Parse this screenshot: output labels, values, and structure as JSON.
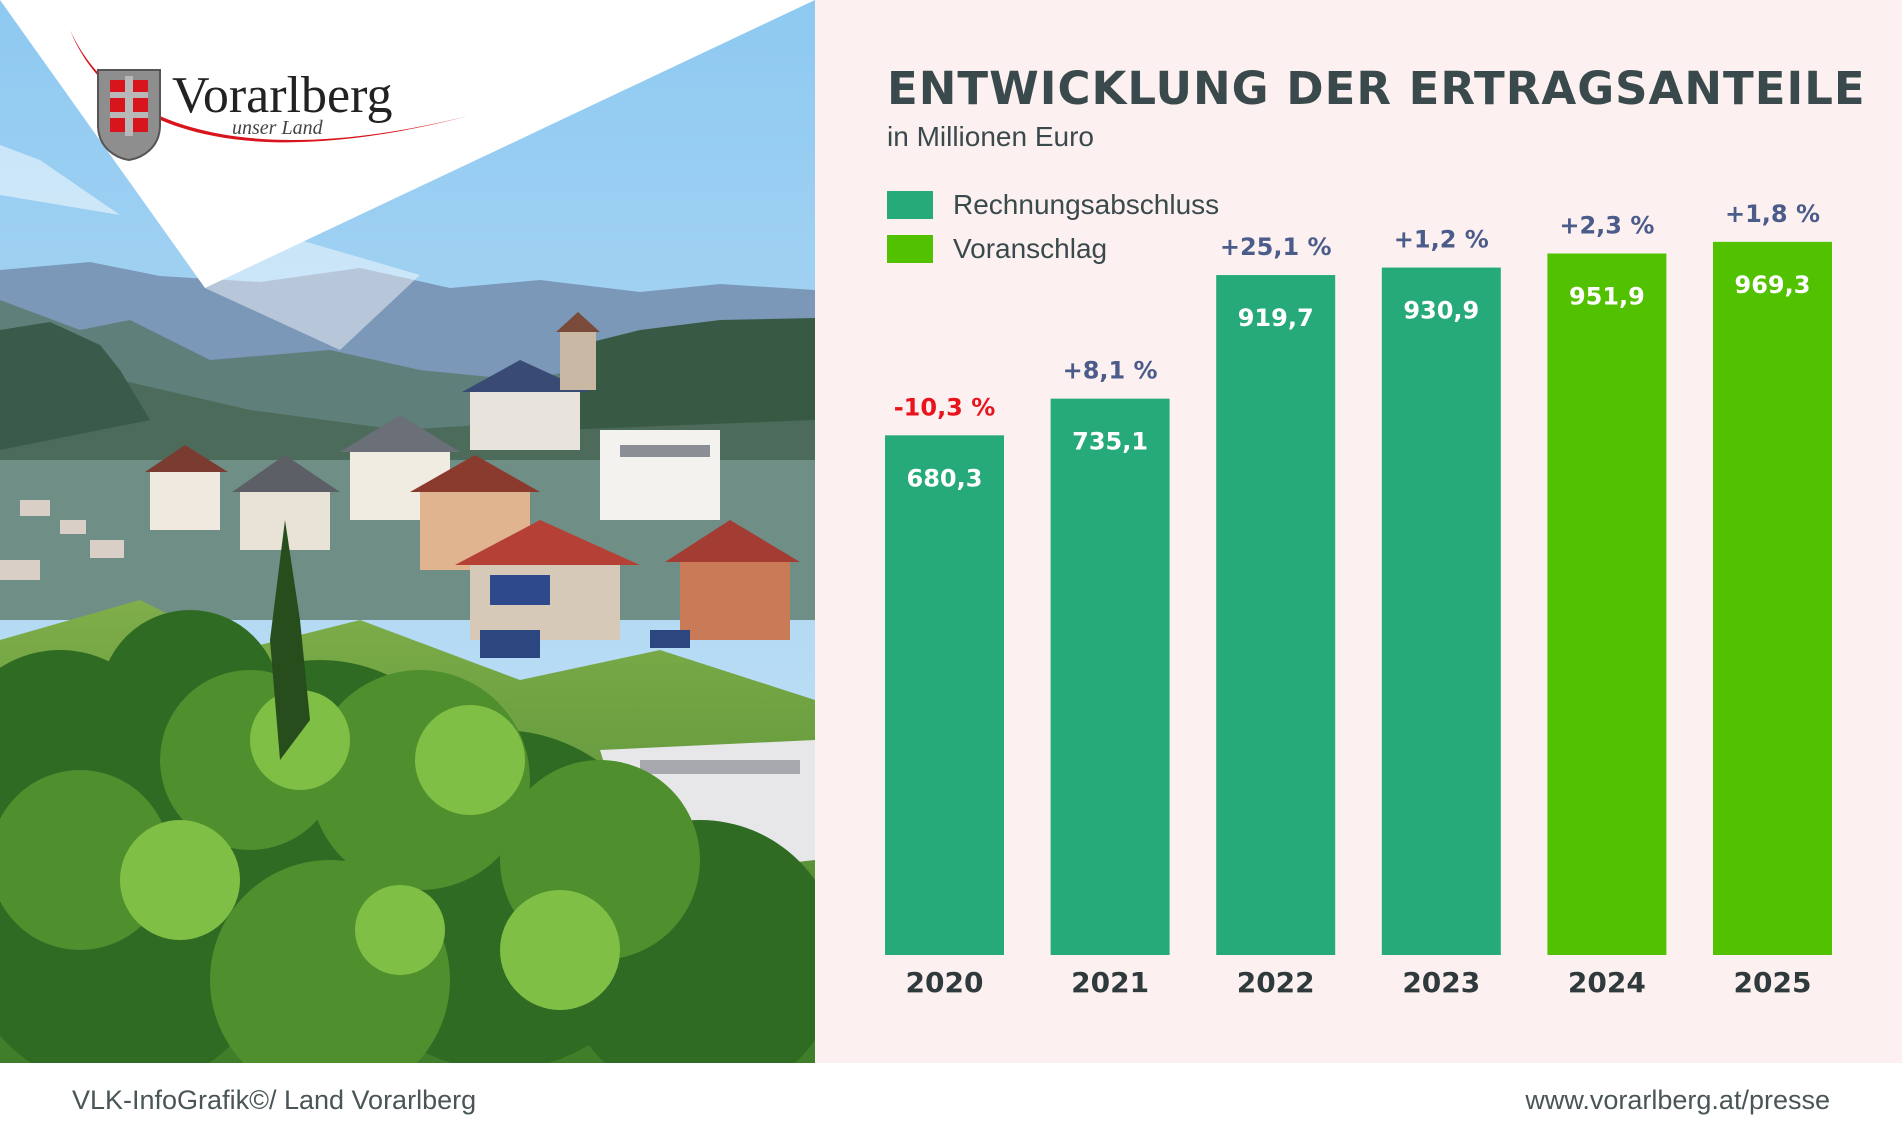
{
  "logo": {
    "name": "Vorarlberg",
    "tagline": "unser Land"
  },
  "chart_data": {
    "type": "bar",
    "title": "ENTWICKLUNG DER ERTRAGSANTEILE",
    "subtitle": "in Millionen Euro",
    "categories": [
      "2020",
      "2021",
      "2022",
      "2023",
      "2024",
      "2025"
    ],
    "values": [
      680.3,
      735.1,
      919.7,
      930.9,
      951.9,
      969.3
    ],
    "value_labels": [
      "680,3",
      "735,1",
      "919,7",
      "930,9",
      "951,9",
      "969,3"
    ],
    "change_labels": [
      "-10,3 %",
      "+8,1 %",
      "+25,1 %",
      "+1,2 %",
      "+2,3 %",
      "+1,8 %"
    ],
    "bar_types": [
      "Rechnungsabschluss",
      "Rechnungsabschluss",
      "Rechnungsabschluss",
      "Rechnungsabschluss",
      "Voranschlag",
      "Voranschlag"
    ],
    "legend": [
      {
        "name": "Rechnungsabschluss",
        "color": "#26aa7a"
      },
      {
        "name": "Voranschlag",
        "color": "#52c200"
      }
    ],
    "legend_position": "top-left",
    "ylim": [
      0,
      1000
    ],
    "grid": false,
    "colors": {
      "negative_change": "#e8141c",
      "positive_change": "#4b5c8a"
    }
  },
  "footer": {
    "credit": "VLK-InfoGrafik©/ Land Vorarlberg",
    "url": "www.vorarlberg.at/presse"
  }
}
